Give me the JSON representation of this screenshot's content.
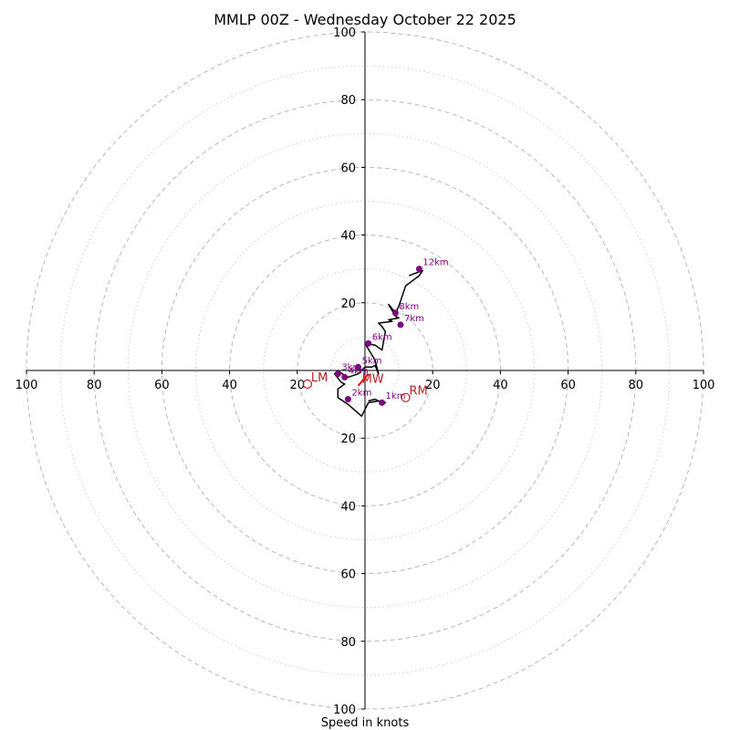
{
  "chart_data": {
    "type": "hodograph",
    "title": "MMLP 00Z - Wednesday October 22 2025",
    "xlabel": "Speed in knots",
    "rmax": 100,
    "rings_dashed": [
      20,
      40,
      60,
      80,
      100
    ],
    "rings_dotted": [
      10,
      30,
      50,
      70,
      90
    ],
    "ticks": {
      "x_left": [
        {
          "v": -100,
          "label": "100"
        },
        {
          "v": -80,
          "label": "80"
        },
        {
          "v": -60,
          "label": "60"
        },
        {
          "v": -40,
          "label": "40"
        },
        {
          "v": -20,
          "label": "20"
        }
      ],
      "x_right": [
        {
          "v": 20,
          "label": "20"
        },
        {
          "v": 40,
          "label": "40"
        },
        {
          "v": 60,
          "label": "60"
        },
        {
          "v": 80,
          "label": "80"
        },
        {
          "v": 100,
          "label": "100"
        }
      ],
      "y_up": [
        {
          "v": 20,
          "label": "20"
        },
        {
          "v": 40,
          "label": "40"
        },
        {
          "v": 60,
          "label": "60"
        },
        {
          "v": 80,
          "label": "80"
        },
        {
          "v": 100,
          "label": "100"
        }
      ],
      "y_down": [
        {
          "v": -20,
          "label": "20"
        },
        {
          "v": -40,
          "label": "40"
        },
        {
          "v": -60,
          "label": "60"
        },
        {
          "v": -80,
          "label": "80"
        },
        {
          "v": -100,
          "label": "100"
        }
      ]
    },
    "trace": {
      "color": "#000000",
      "points": [
        [
          1,
          -9
        ],
        [
          3,
          -8.5
        ],
        [
          5,
          -9.5
        ],
        [
          6,
          -9.5
        ],
        [
          4,
          -9
        ],
        [
          1,
          -9.5
        ],
        [
          -1,
          -13.5
        ],
        [
          -5,
          -10
        ],
        [
          -8,
          -8
        ],
        [
          -8,
          -5.5
        ],
        [
          -6,
          -4
        ],
        [
          -7,
          -3.5
        ],
        [
          -9,
          -1
        ],
        [
          -8,
          0
        ],
        [
          -6,
          -1.5
        ],
        [
          -5,
          -2
        ],
        [
          -2,
          -1
        ],
        [
          0,
          1
        ],
        [
          2,
          1
        ],
        [
          3,
          1.5
        ],
        [
          4,
          -1
        ],
        [
          3,
          3
        ],
        [
          0,
          8
        ],
        [
          3,
          7.5
        ],
        [
          5,
          6
        ],
        [
          6,
          11.5
        ],
        [
          5,
          13
        ],
        [
          4,
          14
        ],
        [
          8,
          14.5
        ],
        [
          7,
          15
        ],
        [
          10,
          15.5
        ],
        [
          9,
          16
        ],
        [
          7,
          19.5
        ],
        [
          9,
          17
        ],
        [
          10,
          19
        ],
        [
          12,
          25
        ],
        [
          16,
          28
        ],
        [
          17,
          29.5
        ],
        [
          13,
          28
        ]
      ]
    },
    "heights": {
      "marker_color": "#800080",
      "points": [
        {
          "label": "1km",
          "u": 5,
          "v": -9.5
        },
        {
          "label": "2km",
          "u": -5,
          "v": -8.5
        },
        {
          "label": "3km",
          "u": -8,
          "v": -1
        },
        {
          "label": "4km",
          "u": -6,
          "v": -2
        },
        {
          "label": "5km",
          "u": -2,
          "v": 1
        },
        {
          "label": "6km",
          "u": 1,
          "v": 8
        },
        {
          "label": "7km",
          "u": 10.5,
          "v": 13.5
        },
        {
          "label": "8km",
          "u": 9,
          "v": 17
        },
        {
          "label": "12km",
          "u": 16,
          "v": 30
        }
      ]
    },
    "motion": {
      "color": "#b22222",
      "points": [
        {
          "label": "RM",
          "u": 12,
          "v": -8
        },
        {
          "label": "LM",
          "u": -17,
          "v": -4
        },
        {
          "label": "MW",
          "u": -2,
          "v": -4.5
        }
      ]
    },
    "shear_vector": {
      "color": "#ff0000",
      "from": [
        -2,
        -4.5
      ],
      "to": [
        1,
        -1
      ]
    }
  }
}
